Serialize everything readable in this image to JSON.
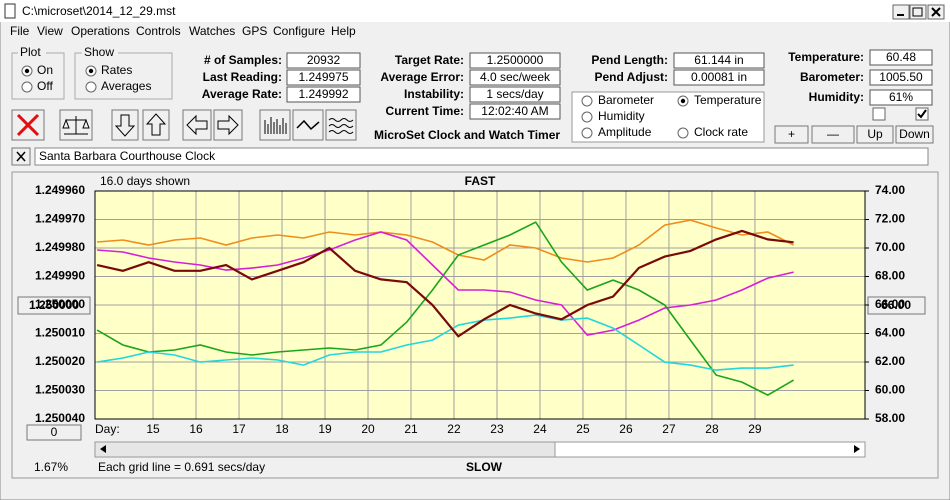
{
  "window": {
    "title": "C:\\microset\\2014_12_29.mst"
  },
  "menu": [
    "File",
    "View",
    "Operations",
    "Controls",
    "Watches",
    "GPS",
    "Configure",
    "Help"
  ],
  "plot_group": {
    "label": "Plot",
    "options": [
      "On",
      "Off"
    ],
    "selected": 0
  },
  "show_group": {
    "label": "Show",
    "options": [
      "Rates",
      "Averages"
    ],
    "selected": 0
  },
  "fields": [
    {
      "label": "# of Samples:",
      "value": "20932"
    },
    {
      "label": "Last Reading:",
      "value": "1.249975"
    },
    {
      "label": "Average Rate:",
      "value": "1.249992"
    },
    {
      "label": "Target Rate:",
      "value": "1.2500000"
    },
    {
      "label": "Average Error:",
      "value": "4.0 sec/week"
    },
    {
      "label": "Instability:",
      "value": "1 secs/day"
    },
    {
      "label": "Current Time:",
      "value": "12:02:40 AM"
    },
    {
      "label": "Pend Length:",
      "value": "61.144 in"
    },
    {
      "label": "Pend Adjust:",
      "value": "0.00081 in"
    },
    {
      "label": "Temperature:",
      "value": "60.48"
    },
    {
      "label": "Barometer:",
      "value": "1005.50"
    },
    {
      "label": "Humidity:",
      "value": "61%"
    }
  ],
  "app_name": "MicroSet Clock and Watch Timer",
  "buttons": [
    "+",
    "—",
    "Up",
    "Down"
  ],
  "clock_name": "Santa Barbara Courthouse Clock",
  "chart_data": {
    "type": "line",
    "top_label": "FAST",
    "bottom_label": "SLOW",
    "days_shown": "16.0 days shown",
    "grid_note": "Each grid line = 0.691 secs/day",
    "percent": "1.67%",
    "x_label": "Day:",
    "scroll_button": "0",
    "center_left": "1.250000",
    "center_right": "66.00",
    "legend_selected": 1,
    "grid": true,
    "xlim": [
      13.65,
      31.56
    ],
    "xticks": [
      15,
      16,
      17,
      18,
      19,
      20,
      21,
      22,
      23,
      24,
      25,
      26,
      27,
      28,
      29
    ],
    "ylim": [
      1.25004,
      1.24996
    ],
    "yticks": [
      {
        "value": 1.24996,
        "label": "1.249960"
      },
      {
        "value": 1.24997,
        "label": "1.249970"
      },
      {
        "value": 1.24998,
        "label": "1.249980"
      },
      {
        "value": 1.24999,
        "label": "1.249990"
      },
      {
        "value": 1.25,
        "label": "1.250000"
      },
      {
        "value": 1.25001,
        "label": "1.250010"
      },
      {
        "value": 1.25002,
        "label": "1.250020"
      },
      {
        "value": 1.25003,
        "label": "1.250030"
      },
      {
        "value": 1.25004,
        "label": "1.250040"
      }
    ],
    "y2lim": [
      58,
      74
    ],
    "y2ticks": [
      {
        "value": 74,
        "label": "74.00"
      },
      {
        "value": 72,
        "label": "72.00"
      },
      {
        "value": 70,
        "label": "70.00"
      },
      {
        "value": 68,
        "label": "68.00"
      },
      {
        "value": 66,
        "label": "66.00"
      },
      {
        "value": 64,
        "label": "64.00"
      },
      {
        "value": 62,
        "label": "62.00"
      },
      {
        "value": 60,
        "label": "60.00"
      },
      {
        "value": 58,
        "label": "58.00"
      }
    ],
    "x": [
      13.7,
      14.3,
      14.9,
      15.5,
      16.1,
      16.7,
      17.3,
      17.9,
      18.5,
      19.1,
      19.7,
      20.3,
      20.9,
      21.5,
      22.1,
      22.7,
      23.3,
      23.9,
      24.5,
      25.1,
      25.7,
      26.3,
      26.9,
      27.5,
      28.1,
      28.7,
      29.3,
      29.9
    ],
    "series": [
      {
        "name": "Barometer",
        "color": "#f08c1c",
        "axis": "y2",
        "values": [
          70.42,
          70.56,
          70.21,
          70.56,
          70.7,
          70.21,
          70.7,
          70.91,
          70.7,
          71.12,
          70.91,
          71.12,
          70.91,
          70.42,
          69.51,
          69.16,
          70.21,
          70.0,
          69.3,
          69.02,
          69.3,
          70.21,
          71.61,
          71.96,
          71.4,
          70.91,
          71.12,
          70.21
        ]
      },
      {
        "name": "Temperature",
        "color": "#1aa51a",
        "axis": "y2",
        "values": [
          64.24,
          63.19,
          62.7,
          62.84,
          63.19,
          62.7,
          62.49,
          62.7,
          62.84,
          62.98,
          62.84,
          63.19,
          64.8,
          67.05,
          69.51,
          70.21,
          70.91,
          71.82,
          69.02,
          67.05,
          67.75,
          67.05,
          66.0,
          63.54,
          61.08,
          60.59,
          59.68,
          60.73
        ]
      },
      {
        "name": "Humidity",
        "color": "#d81ed8",
        "axis": "y2",
        "values": [
          69.86,
          69.72,
          69.3,
          69.02,
          68.81,
          68.45,
          68.59,
          68.81,
          69.3,
          69.86,
          70.56,
          71.12,
          70.56,
          68.81,
          67.05,
          67.05,
          66.91,
          66.35,
          66.0,
          63.89,
          64.24,
          64.94,
          65.79,
          66.0,
          66.35,
          67.05,
          67.89,
          68.31
        ]
      },
      {
        "name": "Amplitude",
        "color": "#22d6dc",
        "axis": "y2",
        "values": [
          61.99,
          62.28,
          62.7,
          62.49,
          61.99,
          62.14,
          62.28,
          62.14,
          61.78,
          62.49,
          62.7,
          62.7,
          63.19,
          63.54,
          64.59,
          64.94,
          65.08,
          65.29,
          64.94,
          65.08,
          64.38,
          63.19,
          61.99,
          61.78,
          61.43,
          61.57,
          61.57,
          61.78
        ]
      },
      {
        "name": "Clock rate",
        "color": "#7a0a0a",
        "axis": "y",
        "values": [
          1.249986,
          1.249988,
          1.249985,
          1.249988,
          1.249988,
          1.249986,
          1.249991,
          1.249988,
          1.249985,
          1.24998,
          1.249988,
          1.249991,
          1.249992,
          1.25,
          1.250011,
          1.250005,
          1.25,
          1.250003,
          1.250005,
          1.25,
          1.249997,
          1.249987,
          1.249983,
          1.249981,
          1.249977,
          1.249974,
          1.249977,
          1.249978
        ]
      }
    ]
  }
}
